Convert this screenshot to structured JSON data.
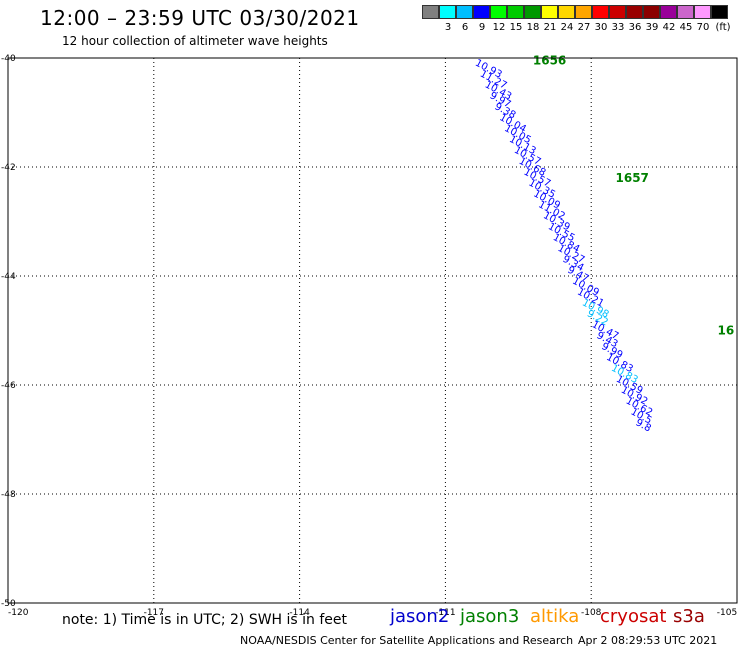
{
  "header": {
    "title": "12:00 – 23:59 UTC 03/30/2021",
    "subtitle": "12 hour collection of altimeter wave heights"
  },
  "legend": {
    "unit": "(ft)",
    "items": [
      {
        "color": "#808080",
        "label": ""
      },
      {
        "color": "#00ffff",
        "label": "3"
      },
      {
        "color": "#00bfff",
        "label": "6"
      },
      {
        "color": "#0000ff",
        "label": "9"
      },
      {
        "color": "#00ff00",
        "label": "12"
      },
      {
        "color": "#00cc00",
        "label": "15"
      },
      {
        "color": "#009900",
        "label": "18"
      },
      {
        "color": "#ffff00",
        "label": "21"
      },
      {
        "color": "#ffd700",
        "label": "24"
      },
      {
        "color": "#ffa500",
        "label": "27"
      },
      {
        "color": "#ff0000",
        "label": "30"
      },
      {
        "color": "#cc0000",
        "label": "33"
      },
      {
        "color": "#990000",
        "label": "36"
      },
      {
        "color": "#8b0000",
        "label": "39"
      },
      {
        "color": "#990099",
        "label": "42"
      },
      {
        "color": "#cc66cc",
        "label": "45"
      },
      {
        "color": "#ff99ff",
        "label": "70"
      },
      {
        "color": "#000000",
        "label": ""
      }
    ]
  },
  "map": {
    "lon_range": [
      -120,
      -105
    ],
    "lat_range": [
      -50,
      -40
    ],
    "lon_ticks": [
      "-120",
      "-117",
      "-114",
      "-111",
      "-108",
      "-105"
    ],
    "lat_ticks": [
      "-40",
      "-42",
      "-44",
      "-46",
      "-48",
      "-50"
    ],
    "pass_labels": [
      {
        "text": "1656",
        "lon": -109.2,
        "lat": -40.05,
        "color": "#008000"
      },
      {
        "text": "1657",
        "lon": -107.5,
        "lat": -42.2,
        "color": "#008000"
      },
      {
        "text": "16",
        "lon": -105.4,
        "lat": -45.0,
        "color": "#008000"
      }
    ],
    "observations": [
      {
        "lon": -110.4,
        "lat": -40.05,
        "value": "10.93",
        "color": "#0000ff"
      },
      {
        "lon": -110.3,
        "lat": -40.25,
        "value": "11.27",
        "color": "#0000ff"
      },
      {
        "lon": -110.2,
        "lat": -40.45,
        "value": "10.43",
        "color": "#0000ff"
      },
      {
        "lon": -110.1,
        "lat": -40.65,
        "value": "9.97",
        "color": "#0000ff"
      },
      {
        "lon": -110.0,
        "lat": -40.85,
        "value": "9.38",
        "color": "#0000ff"
      },
      {
        "lon": -109.9,
        "lat": -41.05,
        "value": "10.04",
        "color": "#0000ff"
      },
      {
        "lon": -109.8,
        "lat": -41.25,
        "value": "10.05",
        "color": "#0000ff"
      },
      {
        "lon": -109.7,
        "lat": -41.45,
        "value": "10.13",
        "color": "#0000ff"
      },
      {
        "lon": -109.6,
        "lat": -41.65,
        "value": "10.57",
        "color": "#0000ff"
      },
      {
        "lon": -109.5,
        "lat": -41.85,
        "value": "10.68",
        "color": "#0000ff"
      },
      {
        "lon": -109.4,
        "lat": -42.05,
        "value": "10.57",
        "color": "#0000ff"
      },
      {
        "lon": -109.3,
        "lat": -42.25,
        "value": "10.35",
        "color": "#0000ff"
      },
      {
        "lon": -109.2,
        "lat": -42.45,
        "value": "10.09",
        "color": "#0000ff"
      },
      {
        "lon": -109.1,
        "lat": -42.65,
        "value": "11.02",
        "color": "#0000ff"
      },
      {
        "lon": -109.0,
        "lat": -42.85,
        "value": "10.39",
        "color": "#0000ff"
      },
      {
        "lon": -108.9,
        "lat": -43.05,
        "value": "10.55",
        "color": "#0000ff"
      },
      {
        "lon": -108.8,
        "lat": -43.25,
        "value": "10.84",
        "color": "#0000ff"
      },
      {
        "lon": -108.7,
        "lat": -43.45,
        "value": "10.27",
        "color": "#0000ff"
      },
      {
        "lon": -108.6,
        "lat": -43.65,
        "value": "9.34",
        "color": "#0000ff"
      },
      {
        "lon": -108.5,
        "lat": -43.85,
        "value": "9.47",
        "color": "#0000ff"
      },
      {
        "lon": -108.4,
        "lat": -44.05,
        "value": "10.09",
        "color": "#0000ff"
      },
      {
        "lon": -108.3,
        "lat": -44.25,
        "value": "10.21",
        "color": "#0000ff"
      },
      {
        "lon": -108.2,
        "lat": -44.45,
        "value": "10.98",
        "color": "#00bfff"
      },
      {
        "lon": -108.1,
        "lat": -44.65,
        "value": "9.22",
        "color": "#00bfff"
      },
      {
        "lon": -108.0,
        "lat": -44.85,
        "value": "10.47",
        "color": "#0000ff"
      },
      {
        "lon": -107.9,
        "lat": -45.05,
        "value": "9.43",
        "color": "#0000ff"
      },
      {
        "lon": -107.8,
        "lat": -45.25,
        "value": "9.99",
        "color": "#0000ff"
      },
      {
        "lon": -107.7,
        "lat": -45.45,
        "value": "10.83",
        "color": "#0000ff"
      },
      {
        "lon": -107.6,
        "lat": -45.65,
        "value": "10.83",
        "color": "#00bfff"
      },
      {
        "lon": -107.5,
        "lat": -45.85,
        "value": "10.59",
        "color": "#0000ff"
      },
      {
        "lon": -107.4,
        "lat": -46.05,
        "value": "10.92",
        "color": "#0000ff"
      },
      {
        "lon": -107.3,
        "lat": -46.25,
        "value": "10.62",
        "color": "#0000ff"
      },
      {
        "lon": -107.2,
        "lat": -46.45,
        "value": "10.5",
        "color": "#0000ff"
      },
      {
        "lon": -107.1,
        "lat": -46.65,
        "value": "9.8",
        "color": "#0000ff"
      }
    ]
  },
  "footer": {
    "note": "note: 1) Time is in UTC; 2) SWH is in feet",
    "satellites": [
      {
        "name": "jason2",
        "color": "#0000cc"
      },
      {
        "name": "jason3",
        "color": "#008000"
      },
      {
        "name": "altika",
        "color": "#ff9900"
      },
      {
        "name": "cryosat",
        "color": "#cc0000"
      },
      {
        "name": "s3a",
        "color": "#990000"
      }
    ],
    "credit": "NOAA/NESDIS Center for Satellite Applications and Research",
    "timestamp": "Apr  2 08:29:53 UTC 2021"
  }
}
